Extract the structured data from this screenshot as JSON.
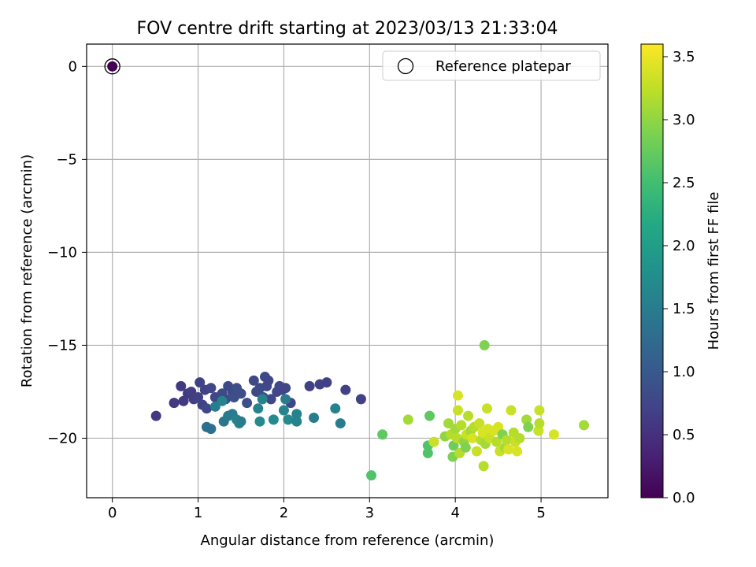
{
  "chart_data": {
    "type": "scatter",
    "title": "FOV centre drift starting at 2023/03/13 21:33:04",
    "xlabel": "Angular distance from reference (arcmin)",
    "ylabel": "Rotation from reference (arcmin)",
    "xlim": [
      -0.3,
      5.78
    ],
    "ylim": [
      -23.2,
      1.2
    ],
    "xticks": [
      0,
      1,
      2,
      3,
      4,
      5
    ],
    "yticks": [
      0,
      -5,
      -10,
      -15,
      -20
    ],
    "grid": true,
    "legend": {
      "position": "top-right",
      "entries": [
        "Reference platepar"
      ]
    },
    "colorbar": {
      "label": "Hours from first FF file",
      "colormap": "viridis",
      "range": [
        0.0,
        3.6
      ],
      "ticks": [
        0.0,
        0.5,
        1.0,
        1.5,
        2.0,
        2.5,
        3.0,
        3.5
      ]
    },
    "reference_point": {
      "x": 0,
      "y": 0,
      "c": 0.0
    },
    "points": [
      {
        "x": 0.51,
        "y": -18.8,
        "c": 0.6
      },
      {
        "x": 0.72,
        "y": -18.1,
        "c": 0.6
      },
      {
        "x": 0.8,
        "y": -17.2,
        "c": 0.6
      },
      {
        "x": 0.83,
        "y": -18.0,
        "c": 0.6
      },
      {
        "x": 0.88,
        "y": -17.6,
        "c": 0.6
      },
      {
        "x": 0.92,
        "y": -17.5,
        "c": 0.65
      },
      {
        "x": 0.95,
        "y": -17.9,
        "c": 0.65
      },
      {
        "x": 1.0,
        "y": -17.8,
        "c": 0.7
      },
      {
        "x": 1.02,
        "y": -17.0,
        "c": 0.7
      },
      {
        "x": 1.05,
        "y": -18.2,
        "c": 0.7
      },
      {
        "x": 1.08,
        "y": -17.4,
        "c": 0.7
      },
      {
        "x": 1.1,
        "y": -18.4,
        "c": 0.75
      },
      {
        "x": 1.15,
        "y": -17.3,
        "c": 0.75
      },
      {
        "x": 1.2,
        "y": -17.8,
        "c": 0.75
      },
      {
        "x": 1.28,
        "y": -17.6,
        "c": 0.8
      },
      {
        "x": 1.32,
        "y": -17.9,
        "c": 0.8
      },
      {
        "x": 1.35,
        "y": -17.2,
        "c": 0.8
      },
      {
        "x": 1.4,
        "y": -17.5,
        "c": 0.8
      },
      {
        "x": 1.42,
        "y": -17.8,
        "c": 0.85
      },
      {
        "x": 1.45,
        "y": -17.3,
        "c": 0.85
      },
      {
        "x": 1.5,
        "y": -17.6,
        "c": 0.85
      },
      {
        "x": 1.57,
        "y": -18.1,
        "c": 0.85
      },
      {
        "x": 1.65,
        "y": -16.9,
        "c": 0.8
      },
      {
        "x": 1.68,
        "y": -17.5,
        "c": 0.8
      },
      {
        "x": 1.72,
        "y": -17.3,
        "c": 0.8
      },
      {
        "x": 1.76,
        "y": -17.8,
        "c": 0.8
      },
      {
        "x": 1.78,
        "y": -16.7,
        "c": 0.8
      },
      {
        "x": 1.8,
        "y": -17.2,
        "c": 0.8
      },
      {
        "x": 1.82,
        "y": -16.9,
        "c": 0.75
      },
      {
        "x": 1.85,
        "y": -17.9,
        "c": 0.75
      },
      {
        "x": 1.92,
        "y": -17.5,
        "c": 0.75
      },
      {
        "x": 1.95,
        "y": -17.2,
        "c": 0.75
      },
      {
        "x": 1.98,
        "y": -17.4,
        "c": 0.75
      },
      {
        "x": 2.02,
        "y": -17.3,
        "c": 0.75
      },
      {
        "x": 2.08,
        "y": -18.1,
        "c": 0.75
      },
      {
        "x": 2.3,
        "y": -17.2,
        "c": 0.7
      },
      {
        "x": 2.42,
        "y": -17.1,
        "c": 0.7
      },
      {
        "x": 2.5,
        "y": -17.0,
        "c": 0.7
      },
      {
        "x": 2.72,
        "y": -17.4,
        "c": 0.7
      },
      {
        "x": 2.9,
        "y": -17.9,
        "c": 0.7
      },
      {
        "x": 1.1,
        "y": -19.4,
        "c": 1.3
      },
      {
        "x": 1.15,
        "y": -19.5,
        "c": 1.3
      },
      {
        "x": 1.2,
        "y": -18.3,
        "c": 1.5
      },
      {
        "x": 1.28,
        "y": -18.0,
        "c": 1.6
      },
      {
        "x": 1.3,
        "y": -19.1,
        "c": 1.4
      },
      {
        "x": 1.35,
        "y": -18.8,
        "c": 1.5
      },
      {
        "x": 1.4,
        "y": -18.7,
        "c": 1.5
      },
      {
        "x": 1.45,
        "y": -19.0,
        "c": 1.6
      },
      {
        "x": 1.48,
        "y": -19.2,
        "c": 1.6
      },
      {
        "x": 1.5,
        "y": -19.1,
        "c": 1.5
      },
      {
        "x": 1.7,
        "y": -18.4,
        "c": 1.6
      },
      {
        "x": 1.72,
        "y": -19.1,
        "c": 1.7
      },
      {
        "x": 1.75,
        "y": -17.9,
        "c": 1.6
      },
      {
        "x": 1.88,
        "y": -19.0,
        "c": 1.7
      },
      {
        "x": 2.0,
        "y": -18.5,
        "c": 1.6
      },
      {
        "x": 2.02,
        "y": -17.9,
        "c": 1.5
      },
      {
        "x": 2.05,
        "y": -19.0,
        "c": 1.7
      },
      {
        "x": 2.15,
        "y": -18.7,
        "c": 1.6
      },
      {
        "x": 2.15,
        "y": -19.1,
        "c": 1.6
      },
      {
        "x": 2.35,
        "y": -18.9,
        "c": 1.5
      },
      {
        "x": 2.6,
        "y": -18.4,
        "c": 1.6
      },
      {
        "x": 2.66,
        "y": -19.2,
        "c": 1.5
      },
      {
        "x": 3.02,
        "y": -22.0,
        "c": 2.6
      },
      {
        "x": 3.15,
        "y": -19.8,
        "c": 2.7
      },
      {
        "x": 3.45,
        "y": -19.0,
        "c": 3.1
      },
      {
        "x": 3.68,
        "y": -20.4,
        "c": 2.6
      },
      {
        "x": 3.68,
        "y": -20.8,
        "c": 2.6
      },
      {
        "x": 3.7,
        "y": -18.8,
        "c": 2.7
      },
      {
        "x": 3.75,
        "y": -20.2,
        "c": 3.3
      },
      {
        "x": 3.88,
        "y": -19.9,
        "c": 3.0
      },
      {
        "x": 3.92,
        "y": -19.2,
        "c": 3.1
      },
      {
        "x": 3.95,
        "y": -19.8,
        "c": 3.2
      },
      {
        "x": 3.97,
        "y": -21.0,
        "c": 2.9
      },
      {
        "x": 3.98,
        "y": -20.4,
        "c": 2.8
      },
      {
        "x": 4.0,
        "y": -19.5,
        "c": 3.1
      },
      {
        "x": 4.02,
        "y": -20.0,
        "c": 3.2
      },
      {
        "x": 4.03,
        "y": -18.5,
        "c": 3.3
      },
      {
        "x": 4.03,
        "y": -17.7,
        "c": 3.4
      },
      {
        "x": 4.05,
        "y": -20.8,
        "c": 3.2
      },
      {
        "x": 4.07,
        "y": -19.3,
        "c": 3.2
      },
      {
        "x": 4.1,
        "y": -20.2,
        "c": 3.0
      },
      {
        "x": 4.12,
        "y": -20.5,
        "c": 2.9
      },
      {
        "x": 4.13,
        "y": -19.8,
        "c": 3.3
      },
      {
        "x": 4.15,
        "y": -18.8,
        "c": 3.2
      },
      {
        "x": 4.18,
        "y": -19.6,
        "c": 3.1
      },
      {
        "x": 4.2,
        "y": -20.0,
        "c": 3.4
      },
      {
        "x": 4.22,
        "y": -19.4,
        "c": 3.2
      },
      {
        "x": 4.25,
        "y": -20.7,
        "c": 3.3
      },
      {
        "x": 4.28,
        "y": -19.2,
        "c": 3.3
      },
      {
        "x": 4.3,
        "y": -20.1,
        "c": 3.2
      },
      {
        "x": 4.32,
        "y": -19.7,
        "c": 3.4
      },
      {
        "x": 4.33,
        "y": -21.5,
        "c": 3.2
      },
      {
        "x": 4.34,
        "y": -15.0,
        "c": 2.9
      },
      {
        "x": 4.35,
        "y": -20.3,
        "c": 3.1
      },
      {
        "x": 4.37,
        "y": -18.4,
        "c": 3.3
      },
      {
        "x": 4.38,
        "y": -19.5,
        "c": 3.4
      },
      {
        "x": 4.4,
        "y": -20.0,
        "c": 3.3
      },
      {
        "x": 4.45,
        "y": -19.6,
        "c": 3.4
      },
      {
        "x": 4.48,
        "y": -20.2,
        "c": 3.2
      },
      {
        "x": 4.5,
        "y": -19.4,
        "c": 3.4
      },
      {
        "x": 4.52,
        "y": -20.7,
        "c": 3.3
      },
      {
        "x": 4.55,
        "y": -19.8,
        "c": 2.9
      },
      {
        "x": 4.58,
        "y": -20.5,
        "c": 3.1
      },
      {
        "x": 4.6,
        "y": -20.1,
        "c": 3.2
      },
      {
        "x": 4.62,
        "y": -20.6,
        "c": 3.4
      },
      {
        "x": 4.65,
        "y": -18.5,
        "c": 3.3
      },
      {
        "x": 4.68,
        "y": -19.7,
        "c": 3.2
      },
      {
        "x": 4.7,
        "y": -20.2,
        "c": 3.3
      },
      {
        "x": 4.72,
        "y": -20.7,
        "c": 3.4
      },
      {
        "x": 4.75,
        "y": -20.0,
        "c": 3.2
      },
      {
        "x": 4.83,
        "y": -19.0,
        "c": 3.1
      },
      {
        "x": 4.85,
        "y": -19.4,
        "c": 2.9
      },
      {
        "x": 4.97,
        "y": -19.6,
        "c": 3.3
      },
      {
        "x": 4.98,
        "y": -19.2,
        "c": 3.2
      },
      {
        "x": 4.98,
        "y": -18.5,
        "c": 3.3
      },
      {
        "x": 5.15,
        "y": -19.8,
        "c": 3.4
      },
      {
        "x": 5.5,
        "y": -19.3,
        "c": 3.1
      }
    ]
  }
}
